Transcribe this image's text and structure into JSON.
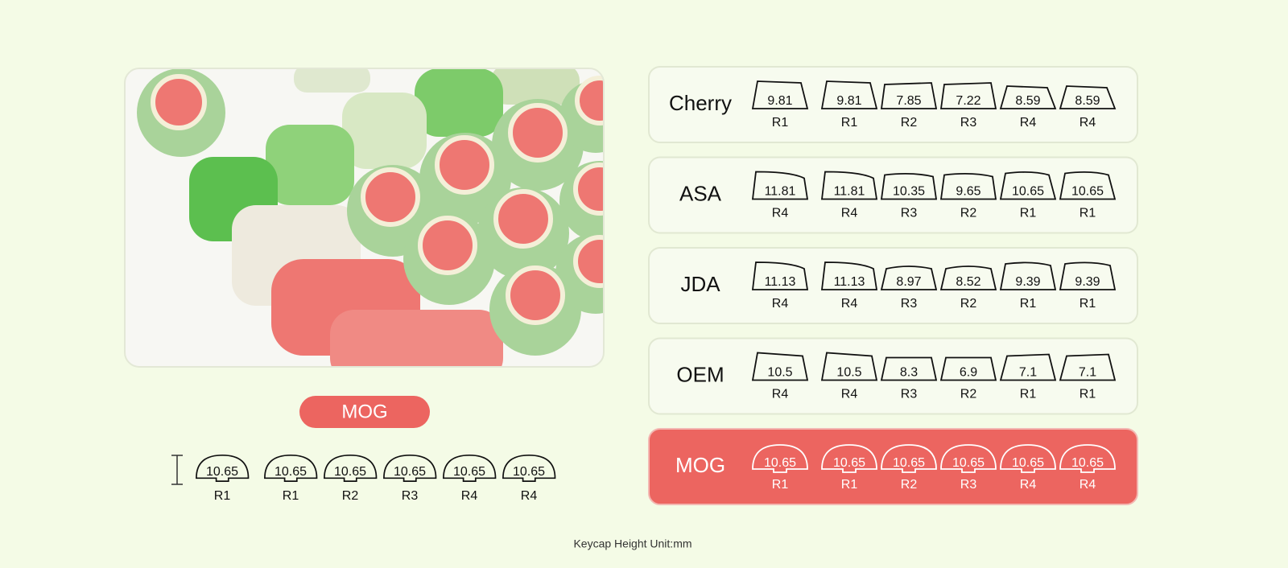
{
  "profiles": [
    {
      "name": "Cherry",
      "keys": [
        {
          "height": 9.81,
          "row": "R1"
        },
        {
          "height": 9.81,
          "row": "R1"
        },
        {
          "height": 7.85,
          "row": "R2"
        },
        {
          "height": 7.22,
          "row": "R3"
        },
        {
          "height": 8.59,
          "row": "R4"
        },
        {
          "height": 8.59,
          "row": "R4"
        }
      ]
    },
    {
      "name": "ASA",
      "keys": [
        {
          "height": 11.81,
          "row": "R4"
        },
        {
          "height": 11.81,
          "row": "R4"
        },
        {
          "height": 10.35,
          "row": "R3"
        },
        {
          "height": 9.65,
          "row": "R2"
        },
        {
          "height": 10.65,
          "row": "R1"
        },
        {
          "height": 10.65,
          "row": "R1"
        }
      ]
    },
    {
      "name": "JDA",
      "keys": [
        {
          "height": 11.13,
          "row": "R4"
        },
        {
          "height": 11.13,
          "row": "R4"
        },
        {
          "height": 8.97,
          "row": "R3"
        },
        {
          "height": 8.52,
          "row": "R2"
        },
        {
          "height": 9.39,
          "row": "R1"
        },
        {
          "height": 9.39,
          "row": "R1"
        }
      ]
    },
    {
      "name": "OEM",
      "keys": [
        {
          "height": 10.5,
          "row": "R4"
        },
        {
          "height": 10.5,
          "row": "R4"
        },
        {
          "height": 8.3,
          "row": "R3"
        },
        {
          "height": 6.9,
          "row": "R2"
        },
        {
          "height": 7.1,
          "row": "R1"
        },
        {
          "height": 7.1,
          "row": "R1"
        }
      ]
    },
    {
      "name": "MOG",
      "keys": [
        {
          "height": 10.65,
          "row": "R1"
        },
        {
          "height": 10.65,
          "row": "R1"
        },
        {
          "height": 10.65,
          "row": "R2"
        },
        {
          "height": 10.65,
          "row": "R3"
        },
        {
          "height": 10.65,
          "row": "R4"
        },
        {
          "height": 10.65,
          "row": "R4"
        }
      ]
    }
  ],
  "mog": {
    "label": "MOG",
    "keys": [
      {
        "height": 10.65,
        "row": "R1"
      },
      {
        "height": 10.65,
        "row": "R1"
      },
      {
        "height": 10.65,
        "row": "R2"
      },
      {
        "height": 10.65,
        "row": "R3"
      },
      {
        "height": 10.65,
        "row": "R4"
      },
      {
        "height": 10.65,
        "row": "R4"
      }
    ]
  },
  "footer": {
    "note": "Keycap Height Unit:mm"
  }
}
